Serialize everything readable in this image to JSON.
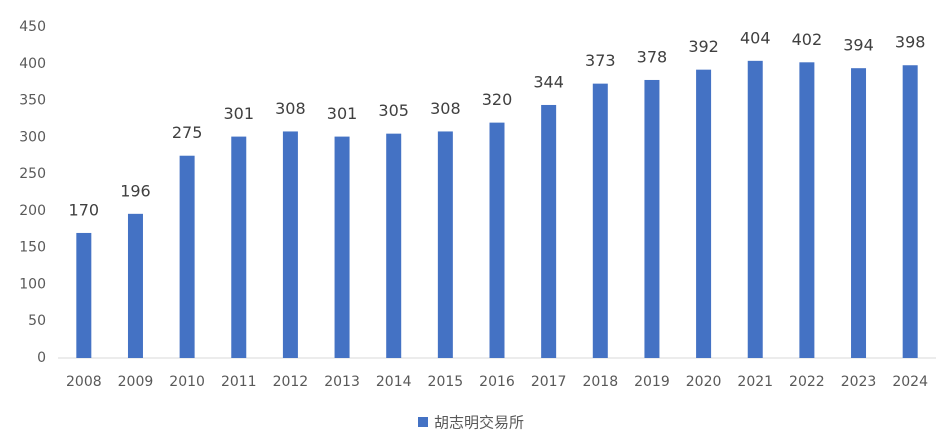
{
  "chart_data": {
    "type": "bar",
    "categories": [
      "2008",
      "2009",
      "2010",
      "2011",
      "2012",
      "2013",
      "2014",
      "2015",
      "2016",
      "2017",
      "2018",
      "2019",
      "2020",
      "2021",
      "2022",
      "2023",
      "2024"
    ],
    "series": [
      {
        "name": "胡志明交易所",
        "color": "#4472c4",
        "values": [
          170,
          196,
          275,
          301,
          308,
          301,
          305,
          308,
          320,
          344,
          373,
          378,
          392,
          404,
          402,
          394,
          398
        ]
      }
    ],
    "ylim": [
      0,
      450
    ],
    "yticks": [
      0,
      50,
      100,
      150,
      200,
      250,
      300,
      350,
      400,
      450
    ],
    "grid": false,
    "data_labels": true,
    "legend": "bottom"
  }
}
